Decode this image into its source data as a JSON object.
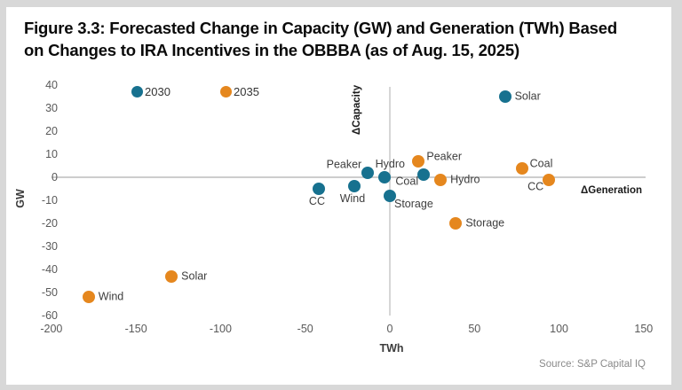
{
  "header": {
    "title_line1": "Figure 3.3: Forecasted Change in Capacity (GW) and Generation (TWh) Based",
    "title_line2": "on Changes to IRA Incentives in the OBBBA (as of Aug. 15, 2025)"
  },
  "chart_data": {
    "type": "scatter",
    "title": "Figure 3.3: Forecasted Change in Capacity (GW) and Generation (TWh) Based on Changes to IRA Incentives in the OBBBA (as of Aug. 15, 2025)",
    "xlabel": "TWh",
    "ylabel": "GW",
    "x_axis_label": "ΔGeneration",
    "y_axis_label": "ΔCapacity",
    "xlim": [
      -200,
      150
    ],
    "ylim": [
      -60,
      40
    ],
    "x_ticks": [
      -200,
      -150,
      -100,
      -50,
      0,
      50,
      100,
      150
    ],
    "y_ticks": [
      40,
      30,
      20,
      10,
      0,
      -10,
      -20,
      -30,
      -40,
      -50,
      -60
    ],
    "grid": false,
    "legend_position": "top-left-inside",
    "series": [
      {
        "name": "2030",
        "color": "#17718f",
        "points": [
          {
            "label": "Solar",
            "x": 68,
            "y": 35,
            "placement": "right"
          },
          {
            "label": "Peaker",
            "x": -13,
            "y": 2,
            "placement": "left-up"
          },
          {
            "label": "Hydro",
            "x": -3,
            "y": 0,
            "placement": "above"
          },
          {
            "label": "Coal",
            "x": 20,
            "y": 1,
            "placement": "left-down"
          },
          {
            "label": "CC",
            "x": -42,
            "y": -5,
            "placement": "below"
          },
          {
            "label": "Wind",
            "x": -21,
            "y": -4,
            "placement": "below"
          },
          {
            "label": "Storage",
            "x": 0,
            "y": -8,
            "placement": "below-right"
          }
        ]
      },
      {
        "name": "2035",
        "color": "#e5871e",
        "points": [
          {
            "label": "Peaker",
            "x": 17,
            "y": 7,
            "placement": "right-up"
          },
          {
            "label": "Hydro",
            "x": 30,
            "y": -1,
            "placement": "right"
          },
          {
            "label": "Coal",
            "x": 78,
            "y": 4,
            "placement": "right-up"
          },
          {
            "label": "CC",
            "x": 94,
            "y": -1,
            "placement": "left-down"
          },
          {
            "label": "Storage",
            "x": 39,
            "y": -20,
            "placement": "right"
          },
          {
            "label": "Solar",
            "x": -129,
            "y": -43,
            "placement": "right"
          },
          {
            "label": "Wind",
            "x": -178,
            "y": -52,
            "placement": "right"
          }
        ]
      }
    ],
    "source": "Source: S&P Capital IQ"
  },
  "footer": {
    "source": "Source: S&P Capital IQ"
  }
}
